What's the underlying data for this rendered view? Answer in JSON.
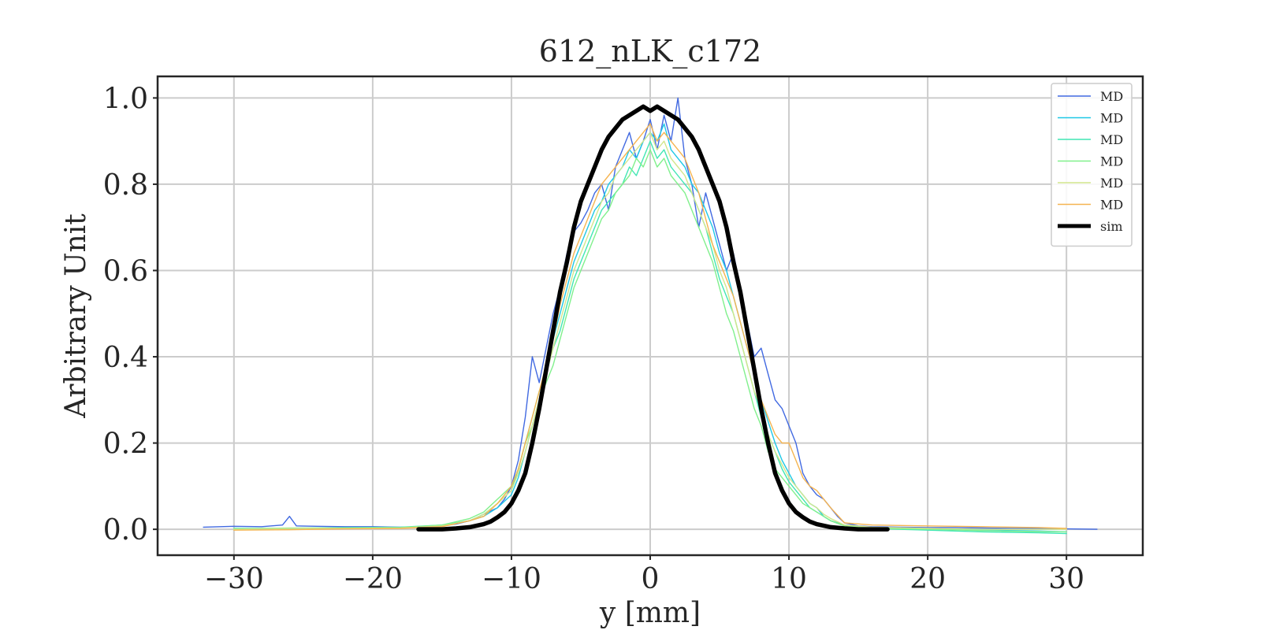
{
  "chart_data": {
    "type": "line",
    "title": "612_nLK_c172",
    "xlabel": "y [mm]",
    "ylabel": "Arbitrary Unit",
    "xlim": [
      -35.5,
      35.5
    ],
    "ylim": [
      -0.06,
      1.05
    ],
    "xticks": [
      -30,
      -20,
      -10,
      0,
      10,
      20,
      30
    ],
    "xtick_labels": [
      "−30",
      "−20",
      "−10",
      "0",
      "10",
      "20",
      "30"
    ],
    "yticks": [
      0.0,
      0.2,
      0.4,
      0.6,
      0.8,
      1.0
    ],
    "ytick_labels": [
      "0.0",
      "0.2",
      "0.4",
      "0.6",
      "0.8",
      "1.0"
    ],
    "grid": true,
    "legend_position": "top-right",
    "series": [
      {
        "name": "MD",
        "color": "#4169e1",
        "width": 1.4,
        "x": [
          -32.2,
          -30,
          -28,
          -26.5,
          -26,
          -25.5,
          -24,
          -22,
          -20,
          -18,
          -16,
          -14,
          -13,
          -12,
          -11,
          -10.5,
          -10,
          -9.5,
          -9,
          -8.5,
          -8,
          -7.5,
          -7,
          -6.5,
          -6,
          -5.5,
          -5,
          -4.5,
          -4,
          -3.5,
          -3,
          -2.5,
          -2,
          -1.5,
          -1,
          -0.5,
          0,
          0.5,
          1,
          1.5,
          2,
          2.5,
          3,
          3.5,
          4,
          4.5,
          5,
          5.5,
          6,
          6.5,
          7,
          7.5,
          8,
          8.5,
          9,
          9.5,
          10,
          10.5,
          11,
          11.5,
          12,
          12.5,
          13,
          13.5,
          14,
          15,
          16,
          18,
          20,
          22,
          24,
          26,
          28,
          30,
          32.2
        ],
        "y": [
          0.005,
          0.007,
          0.006,
          0.01,
          0.03,
          0.008,
          0.007,
          0.006,
          0.006,
          0.005,
          0.006,
          0.012,
          0.02,
          0.035,
          0.05,
          0.07,
          0.1,
          0.16,
          0.26,
          0.4,
          0.34,
          0.42,
          0.5,
          0.56,
          0.64,
          0.69,
          0.71,
          0.74,
          0.78,
          0.8,
          0.74,
          0.84,
          0.88,
          0.92,
          0.86,
          0.9,
          0.95,
          0.88,
          0.96,
          0.9,
          1.0,
          0.86,
          0.8,
          0.7,
          0.78,
          0.72,
          0.66,
          0.6,
          0.64,
          0.56,
          0.48,
          0.4,
          0.42,
          0.36,
          0.3,
          0.28,
          0.24,
          0.2,
          0.13,
          0.1,
          0.08,
          0.07,
          0.05,
          0.03,
          0.015,
          0.008,
          0.006,
          0.005,
          0.004,
          0.004,
          0.003,
          0.002,
          0.002,
          0.001,
          0.0
        ]
      },
      {
        "name": "MD",
        "color": "#1ec8e6",
        "width": 1.4,
        "x": [
          -30,
          -26,
          -22,
          -18,
          -15,
          -13,
          -12,
          -11,
          -10,
          -9.5,
          -9,
          -8.5,
          -8,
          -7.5,
          -7,
          -6.5,
          -6,
          -5.5,
          -5,
          -4.5,
          -4,
          -3.5,
          -3,
          -2.5,
          -2,
          -1.5,
          -1,
          -0.5,
          0,
          0.5,
          1,
          1.5,
          2,
          2.5,
          3,
          3.5,
          4,
          4.5,
          5,
          5.5,
          6,
          6.5,
          7,
          7.5,
          8,
          8.5,
          9,
          9.5,
          10,
          10.5,
          11,
          11.5,
          12,
          12.5,
          13,
          14,
          16,
          20,
          24,
          28,
          30
        ],
        "y": [
          0.0,
          0.002,
          0.003,
          0.004,
          0.008,
          0.02,
          0.03,
          0.05,
          0.08,
          0.12,
          0.18,
          0.24,
          0.3,
          0.38,
          0.44,
          0.5,
          0.56,
          0.62,
          0.66,
          0.7,
          0.74,
          0.76,
          0.8,
          0.82,
          0.84,
          0.88,
          0.86,
          0.9,
          0.92,
          0.9,
          0.94,
          0.88,
          0.86,
          0.84,
          0.8,
          0.78,
          0.74,
          0.7,
          0.64,
          0.6,
          0.54,
          0.48,
          0.42,
          0.36,
          0.3,
          0.25,
          0.2,
          0.16,
          0.13,
          0.1,
          0.08,
          0.06,
          0.05,
          0.03,
          0.02,
          0.01,
          0.004,
          0.0,
          -0.002,
          -0.004,
          -0.006
        ]
      },
      {
        "name": "MD",
        "color": "#40e6b4",
        "width": 1.4,
        "x": [
          -30,
          -26,
          -22,
          -18,
          -15,
          -13,
          -12,
          -11,
          -10,
          -9.5,
          -9,
          -8.5,
          -8,
          -7.5,
          -7,
          -6.5,
          -6,
          -5.5,
          -5,
          -4.5,
          -4,
          -3.5,
          -3,
          -2.5,
          -2,
          -1.5,
          -1,
          -0.5,
          0,
          0.5,
          1,
          1.5,
          2,
          2.5,
          3,
          3.5,
          4,
          4.5,
          5,
          5.5,
          6,
          6.5,
          7,
          7.5,
          8,
          8.5,
          9,
          9.5,
          10,
          10.5,
          11,
          11.5,
          12,
          12.5,
          13,
          14,
          16,
          20,
          24,
          28,
          30
        ],
        "y": [
          0.002,
          0.002,
          0.004,
          0.005,
          0.01,
          0.02,
          0.035,
          0.06,
          0.09,
          0.14,
          0.2,
          0.26,
          0.32,
          0.36,
          0.42,
          0.46,
          0.52,
          0.58,
          0.62,
          0.66,
          0.7,
          0.74,
          0.76,
          0.78,
          0.8,
          0.84,
          0.82,
          0.86,
          0.9,
          0.86,
          0.88,
          0.84,
          0.82,
          0.8,
          0.78,
          0.74,
          0.7,
          0.64,
          0.58,
          0.54,
          0.5,
          0.44,
          0.38,
          0.32,
          0.26,
          0.22,
          0.18,
          0.14,
          0.11,
          0.09,
          0.07,
          0.05,
          0.04,
          0.03,
          0.02,
          0.008,
          0.002,
          -0.002,
          -0.006,
          -0.008,
          -0.01
        ]
      },
      {
        "name": "MD",
        "color": "#80f08c",
        "width": 1.4,
        "x": [
          -30,
          -26,
          -22,
          -18,
          -15,
          -13,
          -12,
          -11,
          -10,
          -9.5,
          -9,
          -8.5,
          -8,
          -7.5,
          -7,
          -6.5,
          -6,
          -5.5,
          -5,
          -4.5,
          -4,
          -3.5,
          -3,
          -2.5,
          -2,
          -1.5,
          -1,
          -0.5,
          0,
          0.5,
          1,
          1.5,
          2,
          2.5,
          3,
          3.5,
          4,
          4.5,
          5,
          5.5,
          6,
          6.5,
          7,
          7.5,
          8,
          8.5,
          9,
          9.5,
          10,
          10.5,
          11,
          11.5,
          12,
          12.5,
          13,
          14,
          16,
          20,
          24,
          28,
          30
        ],
        "y": [
          0.001,
          0.003,
          0.003,
          0.004,
          0.01,
          0.025,
          0.04,
          0.07,
          0.1,
          0.14,
          0.2,
          0.24,
          0.3,
          0.34,
          0.38,
          0.44,
          0.5,
          0.56,
          0.6,
          0.64,
          0.68,
          0.72,
          0.74,
          0.78,
          0.8,
          0.82,
          0.86,
          0.84,
          0.88,
          0.84,
          0.86,
          0.82,
          0.8,
          0.78,
          0.74,
          0.7,
          0.66,
          0.62,
          0.56,
          0.5,
          0.46,
          0.4,
          0.34,
          0.28,
          0.24,
          0.18,
          0.14,
          0.12,
          0.1,
          0.08,
          0.06,
          0.05,
          0.04,
          0.03,
          0.02,
          0.008,
          0.002,
          0.0,
          -0.003,
          -0.005,
          -0.006
        ]
      },
      {
        "name": "MD",
        "color": "#d2e68c",
        "width": 1.4,
        "x": [
          -30,
          -26,
          -22,
          -18,
          -15,
          -13,
          -12,
          -11,
          -10,
          -9.5,
          -9,
          -8.5,
          -8,
          -7.5,
          -7,
          -6.5,
          -6,
          -5.5,
          -5,
          -4.5,
          -4,
          -3.5,
          -3,
          -2.5,
          -2,
          -1.5,
          -1,
          -0.5,
          0,
          0.5,
          1,
          1.5,
          2,
          2.5,
          3,
          3.5,
          4,
          4.5,
          5,
          5.5,
          6,
          6.5,
          7,
          7.5,
          8,
          8.5,
          9,
          9.5,
          10,
          10.5,
          11,
          11.5,
          12,
          12.5,
          13,
          14,
          16,
          20,
          24,
          28,
          30
        ],
        "y": [
          0.0,
          0.002,
          0.002,
          0.003,
          0.008,
          0.02,
          0.035,
          0.06,
          0.09,
          0.13,
          0.18,
          0.24,
          0.3,
          0.36,
          0.42,
          0.48,
          0.54,
          0.6,
          0.64,
          0.68,
          0.72,
          0.76,
          0.78,
          0.82,
          0.84,
          0.86,
          0.88,
          0.9,
          0.92,
          0.88,
          0.9,
          0.86,
          0.84,
          0.82,
          0.78,
          0.74,
          0.7,
          0.66,
          0.6,
          0.56,
          0.5,
          0.44,
          0.38,
          0.32,
          0.28,
          0.22,
          0.18,
          0.15,
          0.12,
          0.1,
          0.08,
          0.06,
          0.05,
          0.035,
          0.025,
          0.01,
          0.005,
          0.002,
          0.0,
          0.0,
          0.0
        ]
      },
      {
        "name": "MD",
        "color": "#f5b450",
        "width": 1.4,
        "x": [
          -30,
          -26,
          -22,
          -18,
          -15,
          -13,
          -12,
          -11,
          -10,
          -9.5,
          -9,
          -8.5,
          -8,
          -7.5,
          -7,
          -6.5,
          -6,
          -5.5,
          -5,
          -4.5,
          -4,
          -3.5,
          -3,
          -2.5,
          -2,
          -1.5,
          -1,
          -0.5,
          0,
          0.5,
          1,
          1.5,
          2,
          2.5,
          3,
          3.5,
          4,
          4.5,
          5,
          5.5,
          6,
          6.5,
          7,
          7.5,
          8,
          8.5,
          9,
          9.5,
          10,
          10.5,
          11,
          11.5,
          12,
          12.5,
          13,
          14,
          16,
          20,
          24,
          28,
          30
        ],
        "y": [
          -0.002,
          -0.001,
          0.001,
          0.002,
          0.006,
          0.02,
          0.03,
          0.06,
          0.1,
          0.14,
          0.2,
          0.26,
          0.32,
          0.38,
          0.44,
          0.52,
          0.58,
          0.64,
          0.68,
          0.72,
          0.76,
          0.8,
          0.82,
          0.84,
          0.86,
          0.88,
          0.9,
          0.92,
          0.94,
          0.9,
          0.92,
          0.9,
          0.88,
          0.86,
          0.82,
          0.78,
          0.72,
          0.66,
          0.62,
          0.58,
          0.54,
          0.48,
          0.42,
          0.36,
          0.3,
          0.26,
          0.22,
          0.2,
          0.2,
          0.16,
          0.12,
          0.1,
          0.09,
          0.07,
          0.05,
          0.015,
          0.01,
          0.008,
          0.006,
          0.004,
          0.002
        ]
      },
      {
        "name": "sim",
        "color": "#000000",
        "width": 5.5,
        "x": [
          -16.7,
          -15,
          -14,
          -13,
          -12,
          -11.5,
          -11,
          -10.5,
          -10,
          -9.5,
          -9,
          -8.5,
          -8,
          -7.5,
          -7,
          -6.5,
          -6,
          -5.5,
          -5,
          -4.5,
          -4,
          -3.5,
          -3,
          -2.5,
          -2,
          -1.5,
          -1,
          -0.5,
          0,
          0.5,
          1,
          1.5,
          2,
          2.5,
          3,
          3.5,
          4,
          4.5,
          5,
          5.5,
          6,
          6.5,
          7,
          7.5,
          8,
          8.5,
          9,
          9.5,
          10,
          10.5,
          11,
          11.5,
          12,
          13,
          14,
          15,
          17.1
        ],
        "y": [
          0.0,
          0.0,
          0.002,
          0.005,
          0.012,
          0.018,
          0.028,
          0.04,
          0.06,
          0.09,
          0.13,
          0.2,
          0.28,
          0.37,
          0.46,
          0.55,
          0.62,
          0.7,
          0.76,
          0.8,
          0.84,
          0.88,
          0.91,
          0.93,
          0.95,
          0.96,
          0.97,
          0.98,
          0.97,
          0.98,
          0.97,
          0.96,
          0.95,
          0.93,
          0.91,
          0.88,
          0.84,
          0.8,
          0.76,
          0.7,
          0.62,
          0.55,
          0.46,
          0.37,
          0.28,
          0.2,
          0.13,
          0.09,
          0.06,
          0.04,
          0.028,
          0.018,
          0.012,
          0.005,
          0.002,
          0.0,
          0.0
        ]
      }
    ]
  }
}
